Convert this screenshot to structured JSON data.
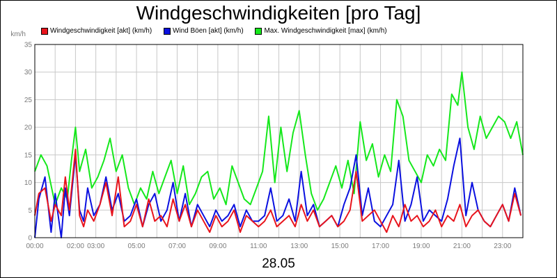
{
  "chart_data": {
    "type": "line",
    "title": "Windgeschwindigkeiten [pro Tag]",
    "date_label": "28.05",
    "y_unit": "km/h",
    "ylim": [
      0,
      35
    ],
    "y_ticks": [
      0,
      5,
      10,
      15,
      20,
      25,
      30,
      35
    ],
    "x_range_hours": [
      0,
      24
    ],
    "x_ticks": [
      {
        "h": 0,
        "label": "00:00"
      },
      {
        "h": 2,
        "label": "02:00"
      },
      {
        "h": 3,
        "label": "03:00"
      },
      {
        "h": 5,
        "label": "05:00"
      },
      {
        "h": 7,
        "label": "07:00"
      },
      {
        "h": 9,
        "label": "09:00"
      },
      {
        "h": 11,
        "label": "11:00"
      },
      {
        "h": 13,
        "label": "13:00"
      },
      {
        "h": 15,
        "label": "15:00"
      },
      {
        "h": 17,
        "label": "17:00"
      },
      {
        "h": 19,
        "label": "19:00"
      },
      {
        "h": 21,
        "label": "21:00"
      },
      {
        "h": 23,
        "label": "23:00"
      }
    ],
    "grid": true,
    "legend_position": "top-left",
    "series": [
      {
        "name": "Windgeschwindigkeit [akt] (km/h)",
        "color": "#e8141c",
        "x": [
          0.0,
          0.2,
          0.5,
          0.8,
          1.0,
          1.3,
          1.5,
          1.7,
          2.0,
          2.2,
          2.4,
          2.6,
          2.9,
          3.2,
          3.5,
          3.8,
          4.1,
          4.4,
          4.7,
          5.0,
          5.3,
          5.6,
          5.9,
          6.2,
          6.5,
          6.8,
          7.1,
          7.4,
          7.7,
          8.0,
          8.3,
          8.6,
          8.9,
          9.2,
          9.5,
          9.8,
          10.1,
          10.4,
          10.7,
          11.0,
          11.3,
          11.6,
          11.9,
          12.2,
          12.5,
          12.8,
          13.1,
          13.4,
          13.7,
          14.0,
          14.3,
          14.6,
          14.9,
          15.2,
          15.5,
          15.8,
          16.1,
          16.4,
          16.7,
          17.0,
          17.3,
          17.6,
          17.9,
          18.2,
          18.5,
          18.8,
          19.1,
          19.4,
          19.7,
          20.0,
          20.3,
          20.6,
          20.9,
          21.2,
          21.5,
          21.8,
          22.1,
          22.4,
          22.7,
          23.0,
          23.3,
          23.6,
          23.9
        ],
        "values": [
          4,
          8,
          9,
          3,
          6,
          4,
          11,
          5,
          16,
          4,
          2,
          5,
          3,
          6,
          10,
          4,
          11,
          2,
          3,
          6,
          2,
          7,
          3,
          4,
          2,
          7,
          3,
          6,
          2,
          5,
          3,
          1,
          4,
          2,
          3,
          5,
          1,
          4,
          3,
          2,
          3,
          5,
          2,
          3,
          4,
          2,
          6,
          3,
          5,
          2,
          3,
          4,
          2,
          3,
          5,
          12,
          3,
          4,
          5,
          3,
          1,
          4,
          2,
          6,
          3,
          4,
          2,
          3,
          5,
          2,
          4,
          3,
          6,
          2,
          4,
          5,
          3,
          2,
          4,
          6,
          3,
          8,
          4
        ]
      },
      {
        "name": "Wind Böen [akt] (km/h)",
        "color": "#0a10e0",
        "x": [
          0.0,
          0.2,
          0.5,
          0.8,
          1.0,
          1.3,
          1.5,
          1.7,
          2.0,
          2.2,
          2.4,
          2.6,
          2.9,
          3.2,
          3.5,
          3.8,
          4.1,
          4.4,
          4.7,
          5.0,
          5.3,
          5.6,
          5.9,
          6.2,
          6.5,
          6.8,
          7.1,
          7.4,
          7.7,
          8.0,
          8.3,
          8.6,
          8.9,
          9.2,
          9.5,
          9.8,
          10.1,
          10.4,
          10.7,
          11.0,
          11.3,
          11.6,
          11.9,
          12.2,
          12.5,
          12.8,
          13.1,
          13.4,
          13.7,
          14.0,
          14.3,
          14.6,
          14.9,
          15.2,
          15.5,
          15.8,
          16.1,
          16.4,
          16.7,
          17.0,
          17.3,
          17.6,
          17.9,
          18.2,
          18.5,
          18.8,
          19.1,
          19.4,
          19.7,
          20.0,
          20.3,
          20.6,
          20.9,
          21.2,
          21.5,
          21.8,
          22.1,
          22.4,
          22.7,
          23.0,
          23.3,
          23.6,
          23.9
        ],
        "values": [
          0,
          7,
          11,
          1,
          8,
          0,
          9,
          4,
          15,
          5,
          3,
          9,
          4,
          6,
          11,
          5,
          8,
          3,
          4,
          7,
          2,
          6,
          8,
          3,
          5,
          10,
          3,
          8,
          2,
          6,
          4,
          2,
          5,
          3,
          4,
          6,
          2,
          5,
          3,
          3,
          4,
          9,
          3,
          4,
          7,
          3,
          12,
          4,
          6,
          2,
          3,
          4,
          2,
          6,
          9,
          15,
          4,
          9,
          3,
          2,
          4,
          6,
          14,
          3,
          6,
          11,
          3,
          5,
          4,
          3,
          7,
          13,
          18,
          4,
          10,
          5,
          3,
          2,
          4,
          6,
          3,
          9,
          4
        ]
      },
      {
        "name": "Max. Windgeschwindigkeit [max] (km/h)",
        "color": "#15e81b",
        "x": [
          0.0,
          0.3,
          0.6,
          1.0,
          1.3,
          1.6,
          1.8,
          2.0,
          2.2,
          2.5,
          2.8,
          3.1,
          3.4,
          3.7,
          4.0,
          4.3,
          4.6,
          4.9,
          5.2,
          5.5,
          5.8,
          6.1,
          6.4,
          6.7,
          7.0,
          7.3,
          7.6,
          7.9,
          8.2,
          8.5,
          8.8,
          9.1,
          9.4,
          9.7,
          10.0,
          10.3,
          10.6,
          10.9,
          11.2,
          11.5,
          11.8,
          12.1,
          12.4,
          12.7,
          13.0,
          13.3,
          13.6,
          13.9,
          14.2,
          14.5,
          14.8,
          15.1,
          15.4,
          15.7,
          16.0,
          16.3,
          16.6,
          16.9,
          17.2,
          17.5,
          17.8,
          18.1,
          18.4,
          18.7,
          19.0,
          19.3,
          19.6,
          19.9,
          20.2,
          20.5,
          20.8,
          21.0,
          21.3,
          21.6,
          21.9,
          22.2,
          22.5,
          22.8,
          23.1,
          23.4,
          23.7,
          24.0
        ],
        "values": [
          12,
          15,
          13,
          6,
          9,
          7,
          14,
          20,
          12,
          16,
          9,
          11,
          14,
          18,
          12,
          15,
          9,
          6,
          9,
          7,
          12,
          8,
          11,
          14,
          8,
          13,
          6,
          8,
          11,
          12,
          7,
          9,
          6,
          13,
          10,
          7,
          6,
          9,
          12,
          22,
          10,
          20,
          12,
          19,
          23,
          15,
          8,
          5,
          7,
          10,
          13,
          9,
          14,
          8,
          21,
          14,
          17,
          11,
          15,
          12,
          25,
          22,
          14,
          12,
          10,
          15,
          13,
          16,
          14,
          26,
          24,
          30,
          20,
          16,
          22,
          18,
          20,
          22,
          21,
          18,
          21,
          15
        ]
      }
    ]
  }
}
